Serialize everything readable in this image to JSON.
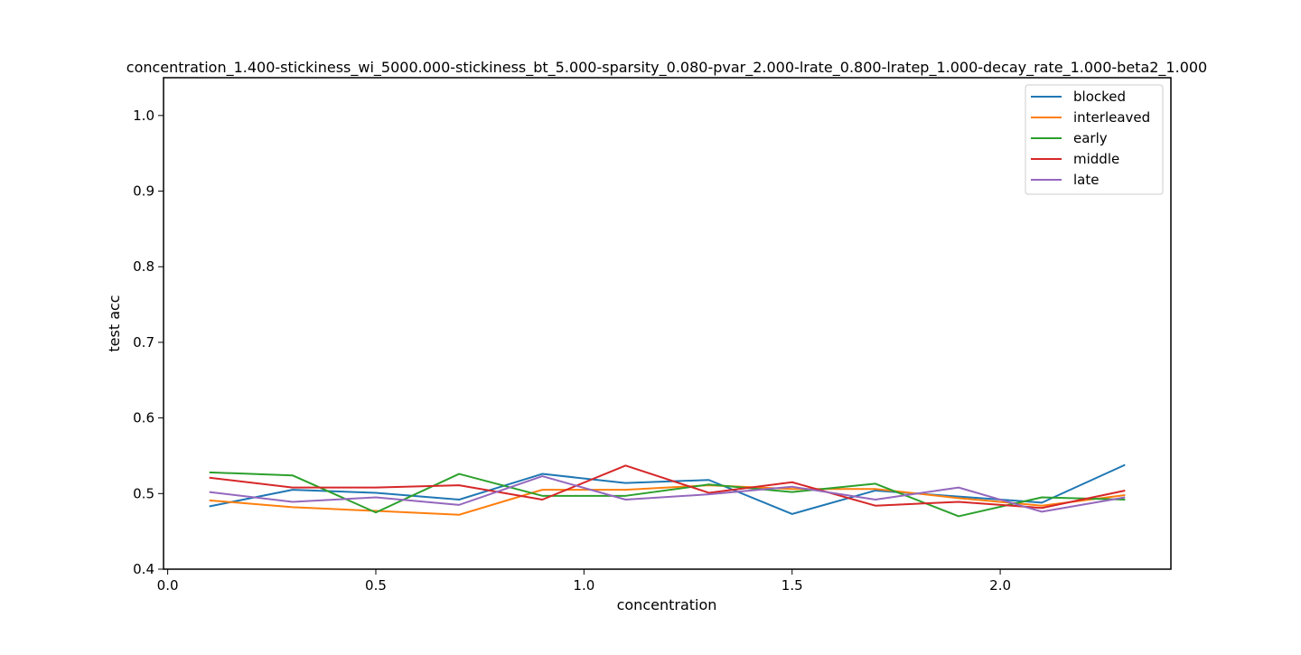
{
  "chart_data": {
    "type": "line",
    "title": "concentration_1.400-stickiness_wi_5000.000-stickiness_bt_5.000-sparsity_0.080-pvar_2.000-lrate_0.800-lratep_1.000-decay_rate_1.000-beta2_1.000",
    "xlabel": "concentration",
    "ylabel": "test acc",
    "xlim": [
      -0.01,
      2.41
    ],
    "ylim": [
      0.4,
      1.05
    ],
    "xticks": [
      0.0,
      0.5,
      1.0,
      1.5,
      2.0
    ],
    "xtick_labels": [
      "0.0",
      "0.5",
      "1.0",
      "1.5",
      "2.0"
    ],
    "yticks": [
      0.4,
      0.5,
      0.6,
      0.7,
      0.8,
      0.9,
      1.0
    ],
    "ytick_labels": [
      "0.4",
      "0.5",
      "0.6",
      "0.7",
      "0.8",
      "0.9",
      "1.0"
    ],
    "grid": false,
    "legend_position": "top-right",
    "x": [
      0.1,
      0.3,
      0.5,
      0.7,
      0.9,
      1.1,
      1.3,
      1.5,
      1.7,
      1.9,
      2.1,
      2.3
    ],
    "series": [
      {
        "name": "blocked",
        "color": "#1f77b4",
        "values": [
          0.483,
          0.505,
          0.501,
          0.492,
          0.526,
          0.514,
          0.518,
          0.473,
          0.504,
          0.496,
          0.488,
          0.538
        ]
      },
      {
        "name": "interleaved",
        "color": "#ff7f0e",
        "values": [
          0.491,
          0.482,
          0.477,
          0.472,
          0.505,
          0.505,
          0.511,
          0.506,
          0.506,
          0.494,
          0.484,
          0.498
        ]
      },
      {
        "name": "early",
        "color": "#2ca02c",
        "values": [
          0.528,
          0.524,
          0.475,
          0.526,
          0.497,
          0.497,
          0.512,
          0.502,
          0.513,
          0.47,
          0.495,
          0.492
        ]
      },
      {
        "name": "middle",
        "color": "#d62728",
        "values": [
          0.521,
          0.508,
          0.508,
          0.511,
          0.492,
          0.537,
          0.501,
          0.515,
          0.484,
          0.489,
          0.481,
          0.504
        ]
      },
      {
        "name": "late",
        "color": "#9467bd",
        "values": [
          0.502,
          0.489,
          0.495,
          0.485,
          0.523,
          0.492,
          0.499,
          0.509,
          0.492,
          0.508,
          0.476,
          0.495
        ]
      }
    ]
  }
}
